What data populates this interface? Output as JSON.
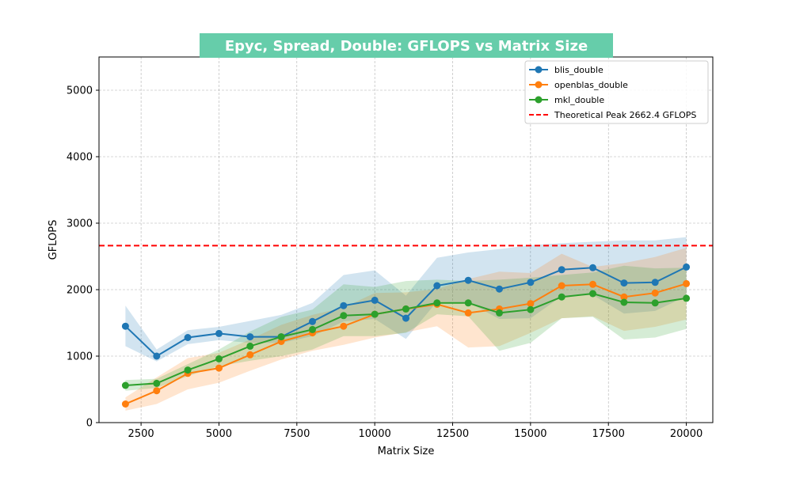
{
  "chart_data": {
    "type": "line",
    "title": "Epyc, Spread, Double: GFLOPS vs Matrix Size",
    "xlabel": "Matrix Size",
    "ylabel": "GFLOPS",
    "xlim": [
      1150,
      20850
    ],
    "ylim": [
      0,
      5500
    ],
    "xticks": [
      2500,
      5000,
      7500,
      10000,
      12500,
      15000,
      17500,
      20000
    ],
    "yticks": [
      0,
      1000,
      2000,
      3000,
      4000,
      5000
    ],
    "grid": true,
    "legend_position": "top-right",
    "title_background": "#66cdaa",
    "x": [
      2000,
      3000,
      4000,
      5000,
      6000,
      7000,
      8000,
      9000,
      10000,
      11000,
      12000,
      13000,
      14000,
      15000,
      16000,
      17000,
      18000,
      19000,
      20000
    ],
    "series": [
      {
        "name": "blis_double",
        "color": "#1f77b4",
        "values": [
          1450,
          1000,
          1280,
          1340,
          1290,
          1290,
          1520,
          1760,
          1840,
          1570,
          2060,
          2140,
          2010,
          2110,
          2300,
          2330,
          2100,
          2110,
          2340
        ],
        "band_low": [
          1150,
          920,
          1180,
          1240,
          1200,
          1200,
          1300,
          1520,
          1560,
          1260,
          1820,
          1810,
          1560,
          1570,
          1900,
          1920,
          1640,
          1680,
          1900
        ],
        "band_high": [
          1760,
          1100,
          1390,
          1440,
          1530,
          1620,
          1800,
          2220,
          2290,
          1910,
          2480,
          2560,
          2610,
          2670,
          2700,
          2720,
          2740,
          2740,
          2790
        ]
      },
      {
        "name": "openblas_double",
        "color": "#ff7f0e",
        "values": [
          280,
          480,
          740,
          820,
          1020,
          1220,
          1350,
          1450,
          1630,
          1710,
          1780,
          1650,
          1710,
          1790,
          2060,
          2080,
          1890,
          1950,
          2090
        ],
        "band_low": [
          180,
          280,
          500,
          600,
          780,
          950,
          1080,
          1170,
          1280,
          1360,
          1450,
          1130,
          1150,
          1350,
          1570,
          1600,
          1380,
          1440,
          1550
        ],
        "band_high": [
          380,
          680,
          970,
          1050,
          1250,
          1470,
          1620,
          1730,
          1950,
          1960,
          2010,
          2160,
          2270,
          2250,
          2540,
          2340,
          2400,
          2490,
          2630
        ]
      },
      {
        "name": "mkl_double",
        "color": "#2ca02c",
        "values": [
          560,
          590,
          790,
          960,
          1150,
          1290,
          1400,
          1610,
          1630,
          1710,
          1800,
          1800,
          1650,
          1700,
          1890,
          1940,
          1810,
          1800,
          1870
        ],
        "band_low": [
          480,
          520,
          700,
          850,
          930,
          1000,
          1100,
          1300,
          1300,
          1350,
          1630,
          1600,
          1080,
          1200,
          1570,
          1590,
          1250,
          1280,
          1410
        ],
        "band_high": [
          640,
          660,
          880,
          1100,
          1370,
          1590,
          1700,
          2080,
          2040,
          2130,
          2150,
          2130,
          2150,
          2180,
          2220,
          2260,
          2360,
          2320,
          2330
        ]
      }
    ],
    "reference_line": {
      "name": "Theoretical Peak 2662.4 GFLOPS",
      "value": 2662.4,
      "color": "#ff0000",
      "style": "dashed"
    }
  }
}
